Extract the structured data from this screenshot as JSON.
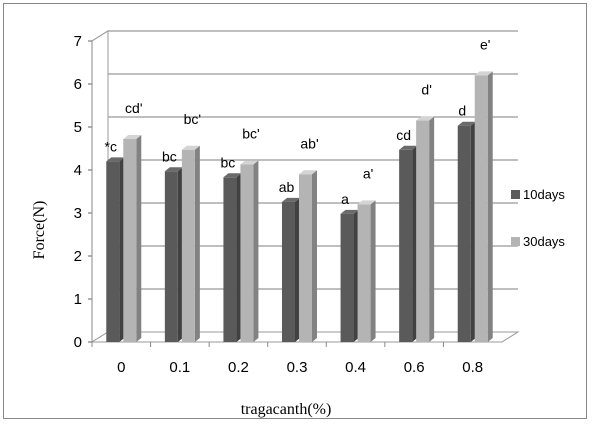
{
  "chart_data": {
    "type": "bar",
    "style": "3d-clustered",
    "xlabel": "tragacanth(%)",
    "ylabel": "Force(N)",
    "ylim": [
      0,
      7
    ],
    "yticks": [
      "0",
      "1",
      "2",
      "3",
      "4",
      "5",
      "6",
      "7"
    ],
    "grid": true,
    "legend_position": "right",
    "categories": [
      "0",
      "0.1",
      "0.2",
      "0.3",
      "0.4",
      "0.6",
      "0.8"
    ],
    "series": [
      {
        "name": "10days",
        "color": "#5a5a5a",
        "values": [
          4.2,
          3.97,
          3.83,
          3.26,
          2.98,
          4.47,
          5.03
        ],
        "labels": [
          "*c",
          "bc",
          "bc",
          "ab",
          "a",
          "cd",
          "d"
        ]
      },
      {
        "name": "30days",
        "color": "#b4b4b4",
        "values": [
          4.72,
          4.47,
          4.13,
          3.9,
          3.2,
          5.15,
          6.2
        ],
        "labels": [
          "cd'",
          "bc'",
          "bc'",
          "ab'",
          "a'",
          "d'",
          "e'"
        ]
      }
    ]
  }
}
